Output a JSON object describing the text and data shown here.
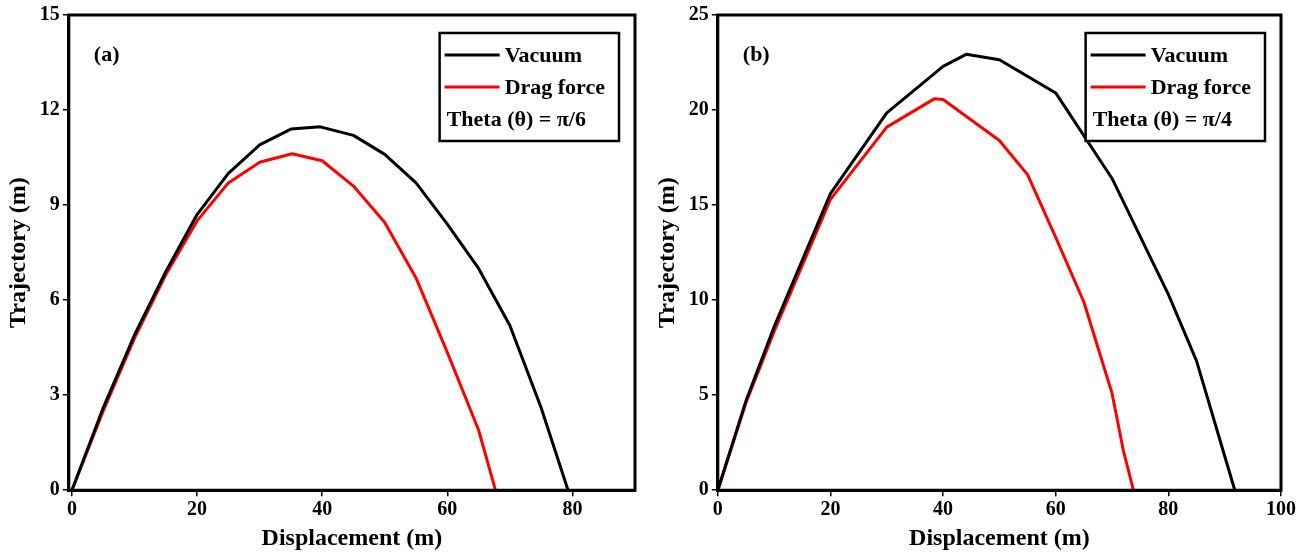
{
  "chart_data": [
    {
      "type": "line",
      "xlabel": "Displacement (m)",
      "ylabel": "Trajectory (m)",
      "xlim": [
        -0.5,
        90
      ],
      "ylim": [
        0,
        15
      ],
      "xticks": [
        0,
        20,
        40,
        60,
        80
      ],
      "yticks": [
        0,
        3,
        6,
        9,
        12,
        15
      ],
      "legend": "top right",
      "grid": false,
      "marker": "none",
      "line_style": "solid",
      "annotations": [
        "(a)",
        "Theta (θ) = π/6"
      ],
      "series": [
        {
          "name": "Vacuum",
          "color": "#000000",
          "x": [
            0,
            5,
            10,
            15,
            20,
            25,
            30,
            35,
            39.7,
            45,
            50,
            55,
            60,
            65,
            70,
            75,
            79.3
          ],
          "values": [
            0,
            2.6,
            4.9,
            6.9,
            8.7,
            10.0,
            10.9,
            11.4,
            11.47,
            11.2,
            10.6,
            9.7,
            8.4,
            7.0,
            5.2,
            2.6,
            0
          ]
        },
        {
          "name": "Drag force",
          "color": "#ff0000",
          "x": [
            0,
            5,
            10,
            15,
            20,
            25,
            30,
            35.2,
            40,
            45,
            50,
            55,
            60,
            65,
            67.7
          ],
          "values": [
            0,
            2.5,
            4.8,
            6.8,
            8.5,
            9.7,
            10.35,
            10.62,
            10.4,
            9.6,
            8.45,
            6.7,
            4.35,
            1.9,
            0
          ]
        }
      ]
    },
    {
      "type": "line",
      "xlabel": "Displacement (m)",
      "ylabel": "Trajectory (m)",
      "xlim": [
        0,
        100
      ],
      "ylim": [
        0,
        25
      ],
      "xticks": [
        0,
        20,
        40,
        60,
        80,
        100
      ],
      "yticks": [
        0,
        5,
        10,
        15,
        20,
        25
      ],
      "legend": "top right",
      "grid": false,
      "marker": "none",
      "line_style": "solid",
      "annotations": [
        "(b)",
        "Theta (θ) = π/4"
      ],
      "series": [
        {
          "name": "Vacuum",
          "color": "#000000",
          "x": [
            0,
            5,
            10,
            20,
            30,
            40,
            44.1,
            50,
            60,
            70,
            80,
            85,
            90,
            91.8
          ],
          "values": [
            0,
            4.7,
            8.6,
            15.6,
            19.85,
            22.3,
            22.93,
            22.65,
            20.9,
            16.4,
            10.3,
            6.8,
            1.8,
            0
          ]
        },
        {
          "name": "Drag force",
          "color": "#ff0000",
          "x": [
            0,
            5,
            10,
            20,
            30,
            38.5,
            40,
            50,
            55,
            60,
            65,
            70,
            72,
            73.8
          ],
          "values": [
            0,
            4.6,
            8.35,
            15.3,
            19.1,
            20.6,
            20.55,
            18.4,
            16.6,
            13.3,
            9.9,
            5.1,
            2.1,
            0
          ]
        }
      ]
    }
  ]
}
